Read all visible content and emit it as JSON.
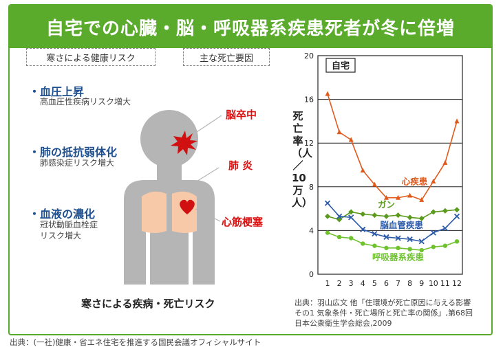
{
  "banner": {
    "title": "自宅での心臓・脳・呼吸器系疾患死者が冬に倍増"
  },
  "tags": {
    "left": "寒さによる健康リスク",
    "right": "主な死亡要因"
  },
  "risks": [
    {
      "title": "・血圧上昇",
      "sub": [
        "高血圧性疾病リスク増大"
      ]
    },
    {
      "title": "・肺の抵抗弱体化",
      "sub": [
        "肺感染症リスク増大"
      ]
    },
    {
      "title": "・血液の濃化",
      "sub": [
        "冠状動脈血栓症",
        "リスク増大"
      ]
    }
  ],
  "causes": {
    "stroke": "脳卒中",
    "lung": "肺 炎",
    "heart": "心筋梗塞"
  },
  "figure_caption": "寒さによる疾病・死亡リスク",
  "chart_source": "出典：羽山広文 他「住環境が死亡原因に与える影響その1 気象条件・死亡場所と死亡率の関係」,第68回 日本公衆衛生学会総会,2009",
  "page_source": "出典：(一社)健康・省エネ住宅を推進する国民会議オフィシャルサイト",
  "colors": {
    "accent": "#5aaa2c",
    "risk": "#1e4f8f",
    "cause": "#d11111",
    "body": "#b5b5b5",
    "lungs": "#f8c9a8"
  },
  "chart_data": {
    "type": "line",
    "inset_label": "自宅",
    "ylabel": "死亡率（人／10万人）",
    "x": [
      1,
      2,
      3,
      4,
      5,
      6,
      7,
      8,
      9,
      10,
      11,
      12
    ],
    "ylim": [
      0,
      20
    ],
    "yticks": [
      0,
      4,
      8,
      12,
      16,
      20
    ],
    "grid": true,
    "series": [
      {
        "name": "心疾患",
        "color": "#e05a1c",
        "marker": "triangle",
        "values": [
          16.5,
          13.0,
          12.3,
          9.5,
          8.2,
          7.0,
          7.0,
          7.2,
          6.8,
          8.5,
          10.2,
          14.0
        ]
      },
      {
        "name": "ガン",
        "color": "#5a9a1c",
        "marker": "diamond",
        "values": [
          5.3,
          5.0,
          5.7,
          5.5,
          5.4,
          5.3,
          5.4,
          5.2,
          5.1,
          5.7,
          5.8,
          5.9
        ]
      },
      {
        "name": "脳血管疾患",
        "color": "#2d5aa8",
        "marker": "x",
        "values": [
          6.5,
          5.3,
          5.2,
          4.1,
          3.7,
          3.4,
          3.3,
          3.2,
          3.0,
          3.8,
          4.2,
          5.3
        ]
      },
      {
        "name": "呼吸器系疾患",
        "color": "#6ec22c",
        "marker": "circle",
        "values": [
          3.8,
          3.4,
          3.3,
          2.8,
          2.6,
          2.4,
          2.4,
          2.3,
          2.2,
          2.5,
          2.6,
          3.0
        ]
      }
    ]
  }
}
